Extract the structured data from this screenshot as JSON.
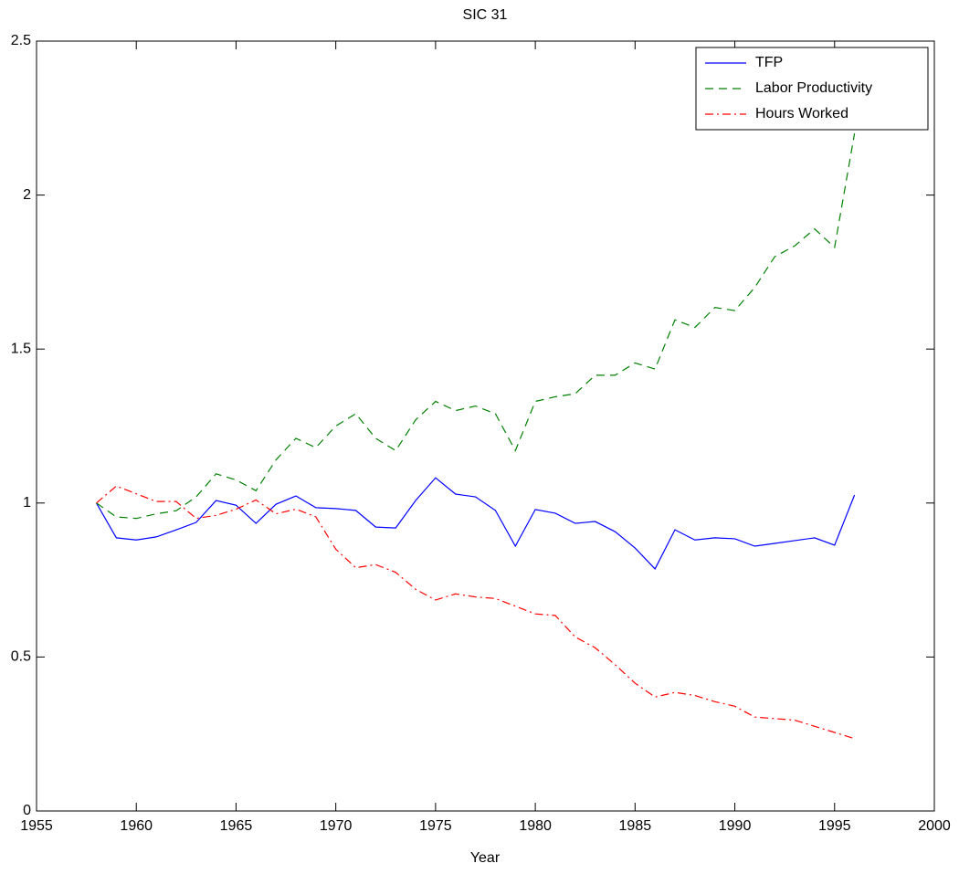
{
  "chart_data": {
    "type": "line",
    "title": "SIC 31",
    "x_label": "Year",
    "x": [
      1958,
      1959,
      1960,
      1961,
      1962,
      1963,
      1964,
      1965,
      1966,
      1967,
      1968,
      1969,
      1970,
      1971,
      1972,
      1973,
      1974,
      1975,
      1976,
      1977,
      1978,
      1979,
      1980,
      1981,
      1982,
      1983,
      1984,
      1985,
      1986,
      1987,
      1988,
      1989,
      1990,
      1991,
      1992,
      1993,
      1994,
      1995,
      1996
    ],
    "series": [
      {
        "name": "TFP",
        "color": "#0000ff",
        "style": "solid",
        "values": [
          1.0,
          0.887,
          0.88,
          0.89,
          0.913,
          0.937,
          1.008,
          0.993,
          0.934,
          0.996,
          1.023,
          0.985,
          0.982,
          0.976,
          0.922,
          0.919,
          1.008,
          1.082,
          1.029,
          1.02,
          0.976,
          0.86,
          0.979,
          0.967,
          0.934,
          0.94,
          0.907,
          0.854,
          0.786,
          0.913,
          0.88,
          0.887,
          0.884,
          0.86,
          0.869,
          0.878,
          0.887,
          0.863,
          1.026
        ]
      },
      {
        "name": "Labor Productivity",
        "color": "#008000",
        "style": "dashed",
        "values": [
          1.0,
          0.955,
          0.95,
          0.965,
          0.975,
          1.02,
          1.095,
          1.075,
          1.04,
          1.14,
          1.21,
          1.18,
          1.25,
          1.29,
          1.21,
          1.17,
          1.27,
          1.33,
          1.3,
          1.315,
          1.29,
          1.17,
          1.33,
          1.345,
          1.355,
          1.415,
          1.415,
          1.455,
          1.435,
          1.595,
          1.57,
          1.635,
          1.625,
          1.7,
          1.8,
          1.835,
          1.89,
          1.83,
          2.2
        ]
      },
      {
        "name": "Hours Worked",
        "color": "#ff0000",
        "style": "dashdot",
        "values": [
          1.0,
          1.055,
          1.03,
          1.005,
          1.005,
          0.95,
          0.96,
          0.98,
          1.01,
          0.965,
          0.98,
          0.955,
          0.85,
          0.79,
          0.8,
          0.775,
          0.72,
          0.685,
          0.705,
          0.695,
          0.69,
          0.665,
          0.64,
          0.635,
          0.565,
          0.53,
          0.475,
          0.415,
          0.37,
          0.385,
          0.375,
          0.355,
          0.34,
          0.305,
          0.3,
          0.295,
          0.275,
          0.255,
          0.235
        ]
      }
    ],
    "xlim": [
      1955,
      2000
    ],
    "xticks": [
      1955,
      1960,
      1965,
      1970,
      1975,
      1980,
      1985,
      1990,
      1995,
      2000
    ],
    "ylim": [
      0,
      2.5
    ],
    "yticks": [
      0,
      0.5,
      1,
      1.5,
      2,
      2.5
    ],
    "grid": false,
    "legend": "northeast"
  }
}
